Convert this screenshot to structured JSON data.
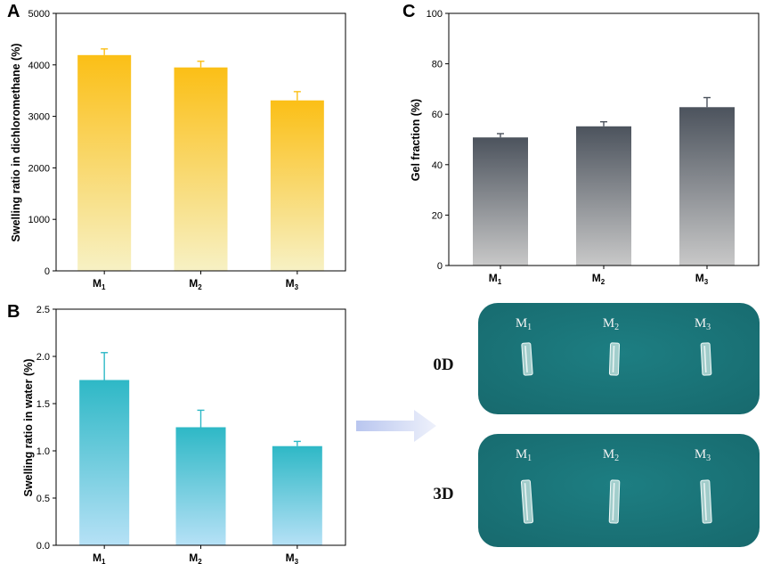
{
  "chart_data": [
    {
      "panel": "A",
      "type": "bar",
      "title": "",
      "xlabel": "",
      "ylabel": "Swelling ratio in dichloromethane (%)",
      "categories": [
        "M",
        "M",
        "M"
      ],
      "category_subscripts": [
        "1",
        "2",
        "3"
      ],
      "values": [
        4190,
        3950,
        3310
      ],
      "errors": [
        120,
        120,
        170
      ],
      "ylim": [
        0,
        5000
      ],
      "yticks": [
        0,
        1000,
        2000,
        3000,
        4000,
        5000
      ],
      "grid": false,
      "color_top": "#fbbf16",
      "color_bottom": "#f7f1c4"
    },
    {
      "panel": "B",
      "type": "bar",
      "title": "",
      "xlabel": "",
      "ylabel": "Swelling ratio in water (%)",
      "categories": [
        "M",
        "M",
        "M"
      ],
      "category_subscripts": [
        "1",
        "2",
        "3"
      ],
      "values": [
        1.75,
        1.25,
        1.05
      ],
      "errors": [
        0.29,
        0.18,
        0.05
      ],
      "ylim": [
        0,
        2.5
      ],
      "yticks": [
        0.0,
        0.5,
        1.0,
        1.5,
        2.0,
        2.5
      ],
      "ytick_labels": [
        "0.0",
        "0.5",
        "1.0",
        "1.5",
        "2.0",
        "2.5"
      ],
      "grid": false,
      "color_top": "#2eb8c6",
      "color_bottom": "#b6e1f6"
    },
    {
      "panel": "C",
      "type": "bar",
      "title": "",
      "xlabel": "",
      "ylabel": "Gel fraction (%)",
      "categories": [
        "M",
        "M",
        "M"
      ],
      "category_subscripts": [
        "1",
        "2",
        "3"
      ],
      "values": [
        50.8,
        55.2,
        62.8
      ],
      "errors": [
        1.5,
        1.8,
        3.8
      ],
      "ylim": [
        0,
        100
      ],
      "yticks": [
        0,
        20,
        40,
        60,
        80,
        100
      ],
      "grid": false,
      "color_top": "#4c535d",
      "color_bottom": "#c8c8c8"
    }
  ],
  "photos": {
    "rows": [
      {
        "day": "0D",
        "labels": [
          "M",
          "M",
          "M"
        ],
        "subscripts": [
          "1",
          "2",
          "3"
        ]
      },
      {
        "day": "3D",
        "labels": [
          "M",
          "M",
          "M"
        ],
        "subscripts": [
          "1",
          "2",
          "3"
        ]
      }
    ],
    "background_color": "#17696d"
  },
  "arrow_color": "#b9c6ef"
}
